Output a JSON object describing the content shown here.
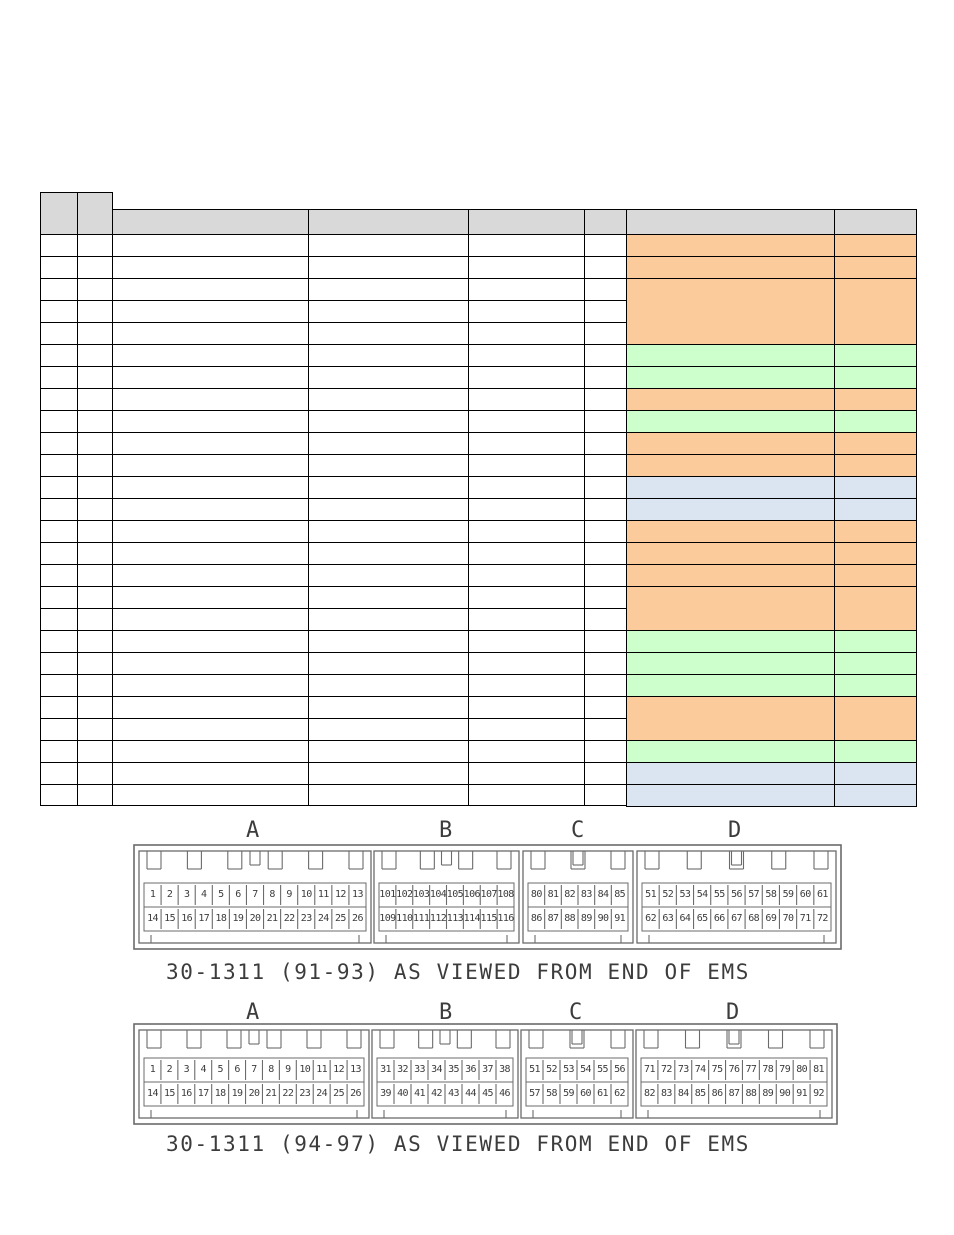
{
  "colors": {
    "orange": "#fccb9b",
    "green": "#ccffcc",
    "blue": "#dbe5f1",
    "header": "#d9d9d9"
  },
  "table": {
    "row_count": 26,
    "fills": [
      {
        "rows": [
          0
        ],
        "color": "orange"
      },
      {
        "rows": [
          1
        ],
        "color": "orange"
      },
      {
        "rows": [
          2,
          3,
          4
        ],
        "color": "orange"
      },
      {
        "rows": [
          5
        ],
        "color": "green"
      },
      {
        "rows": [
          6
        ],
        "color": "green"
      },
      {
        "rows": [
          7
        ],
        "color": "orange"
      },
      {
        "rows": [
          8
        ],
        "color": "green"
      },
      {
        "rows": [
          9
        ],
        "color": "orange"
      },
      {
        "rows": [
          10
        ],
        "color": "orange"
      },
      {
        "rows": [
          11
        ],
        "color": "blue"
      },
      {
        "rows": [
          12
        ],
        "color": "blue"
      },
      {
        "rows": [
          13
        ],
        "color": "orange"
      },
      {
        "rows": [
          14
        ],
        "color": "orange"
      },
      {
        "rows": [
          15
        ],
        "color": "orange"
      },
      {
        "rows": [
          16,
          17
        ],
        "color": "orange"
      },
      {
        "rows": [
          18
        ],
        "color": "green"
      },
      {
        "rows": [
          19
        ],
        "color": "green"
      },
      {
        "rows": [
          20
        ],
        "color": "green"
      },
      {
        "rows": [
          21,
          22
        ],
        "color": "orange"
      },
      {
        "rows": [
          23
        ],
        "color": "green"
      },
      {
        "rows": [
          24
        ],
        "color": "blue"
      },
      {
        "rows": [
          25
        ],
        "color": "blue"
      }
    ]
  },
  "diagram1": {
    "letters": [
      "A",
      "B",
      "C",
      "D"
    ],
    "caption": "30-1311 (91-93) AS VIEWED FROM END OF EMS",
    "pins": {
      "A_top": [
        "1",
        "2",
        "3",
        "4",
        "5",
        "6",
        "7",
        "8",
        "9",
        "10",
        "11",
        "12",
        "13"
      ],
      "A_bottom": [
        "14",
        "15",
        "16",
        "17",
        "18",
        "19",
        "20",
        "21",
        "22",
        "23",
        "24",
        "25",
        "26"
      ],
      "B_top": [
        "101",
        "102",
        "103",
        "104",
        "105",
        "106",
        "107",
        "108"
      ],
      "B_bottom": [
        "109",
        "110",
        "111",
        "112",
        "113",
        "114",
        "115",
        "116"
      ],
      "C_top": [
        "80",
        "81",
        "82",
        "83",
        "84",
        "85"
      ],
      "C_bottom": [
        "86",
        "87",
        "88",
        "89",
        "90",
        "91"
      ],
      "D_top": [
        "51",
        "52",
        "53",
        "54",
        "55",
        "56",
        "57",
        "58",
        "59",
        "60",
        "61"
      ],
      "D_bottom": [
        "62",
        "63",
        "64",
        "65",
        "66",
        "67",
        "68",
        "69",
        "70",
        "71",
        "72"
      ]
    }
  },
  "diagram2": {
    "letters": [
      "A",
      "B",
      "C",
      "D"
    ],
    "caption": "30-1311 (94-97) AS VIEWED FROM END OF EMS",
    "pins": {
      "A_top": [
        "1",
        "2",
        "3",
        "4",
        "5",
        "6",
        "7",
        "8",
        "9",
        "10",
        "11",
        "12",
        "13"
      ],
      "A_bottom": [
        "14",
        "15",
        "16",
        "17",
        "18",
        "19",
        "20",
        "21",
        "22",
        "23",
        "24",
        "25",
        "26"
      ],
      "B_top": [
        "31",
        "32",
        "33",
        "34",
        "35",
        "36",
        "37",
        "38"
      ],
      "B_bottom": [
        "39",
        "40",
        "41",
        "42",
        "43",
        "44",
        "45",
        "46"
      ],
      "C_top": [
        "51",
        "52",
        "53",
        "54",
        "55",
        "56"
      ],
      "C_bottom": [
        "57",
        "58",
        "59",
        "60",
        "61",
        "62"
      ],
      "D_top": [
        "71",
        "72",
        "73",
        "74",
        "75",
        "76",
        "77",
        "78",
        "79",
        "80",
        "81"
      ],
      "D_bottom": [
        "82",
        "83",
        "84",
        "85",
        "86",
        "87",
        "88",
        "89",
        "90",
        "91",
        "92"
      ]
    }
  }
}
